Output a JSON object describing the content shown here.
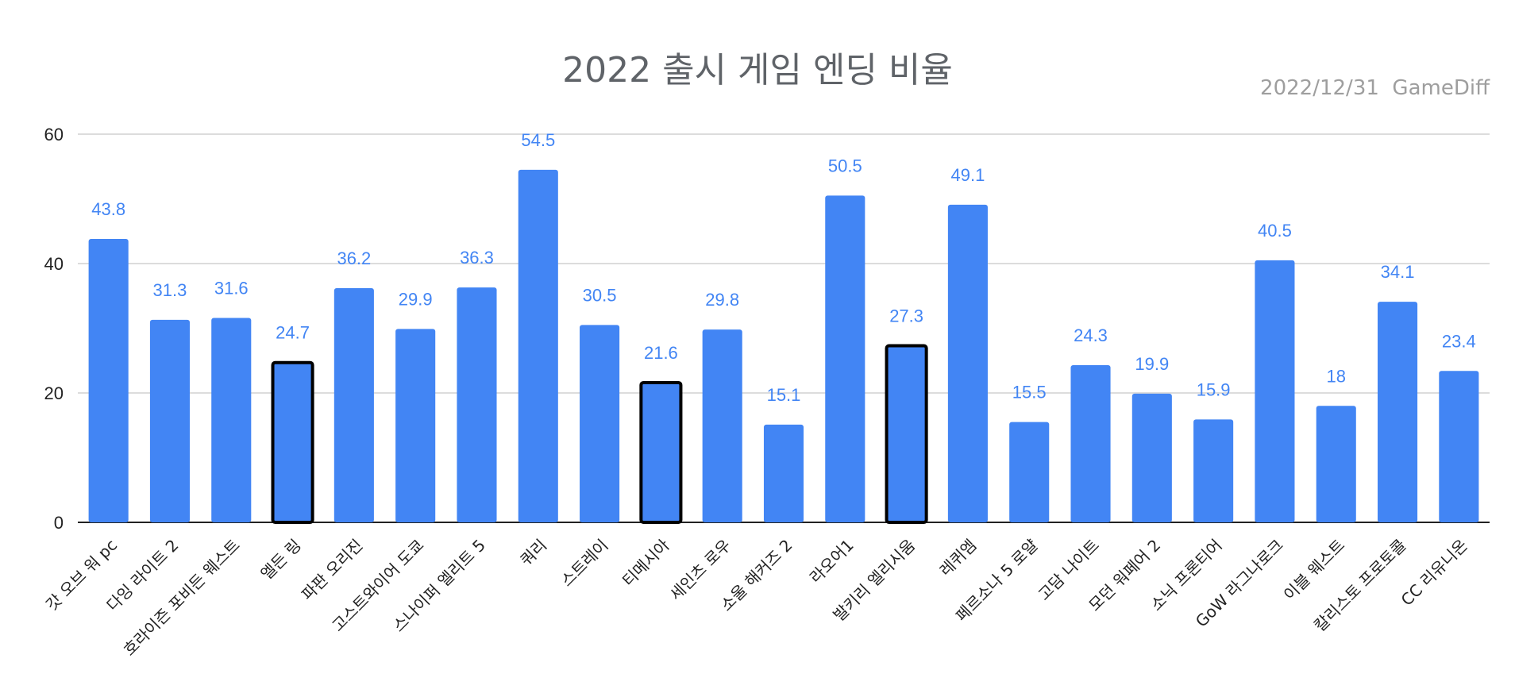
{
  "chart_data": {
    "type": "bar",
    "title": "2022 출시 게임 엔딩 비율",
    "subtitle": "2022/12/31  GameDiff",
    "xlabel": "",
    "ylabel": "",
    "ylim": [
      0,
      60
    ],
    "yticks": [
      0,
      20,
      40,
      60
    ],
    "grid": true,
    "bar_color": "#4285f4",
    "highlight_stroke_color": "#000000",
    "categories": [
      "갓 오브 워 pc",
      "다잉 라이트 2",
      "호라이즌 포비든 웨스트",
      "엘든 링",
      "파판 오리진",
      "고스트와이어 도쿄",
      "스나이퍼 엘리트 5",
      "쿼리",
      "스트레이",
      "티메시아",
      "세인츠 로우",
      "소울 해커즈 2",
      "라오어1",
      "발키리 엘리시움",
      "레퀴엠",
      "페르소나 5 로얄",
      "고담 나이트",
      "모던 워페어 2",
      "소닉 프론티어",
      "GoW 라그나로크",
      "이블 웨스트",
      "칼리스토 프로토콜",
      "CC 리유니온"
    ],
    "values": [
      43.8,
      31.3,
      31.6,
      24.7,
      36.2,
      29.9,
      36.3,
      54.5,
      30.5,
      21.6,
      29.8,
      15.1,
      50.5,
      27.3,
      49.1,
      15.5,
      24.3,
      19.9,
      15.9,
      40.5,
      18,
      34.1,
      23.4
    ],
    "highlighted": [
      "엘든 링",
      "티메시아",
      "발키리 엘리시움"
    ]
  }
}
